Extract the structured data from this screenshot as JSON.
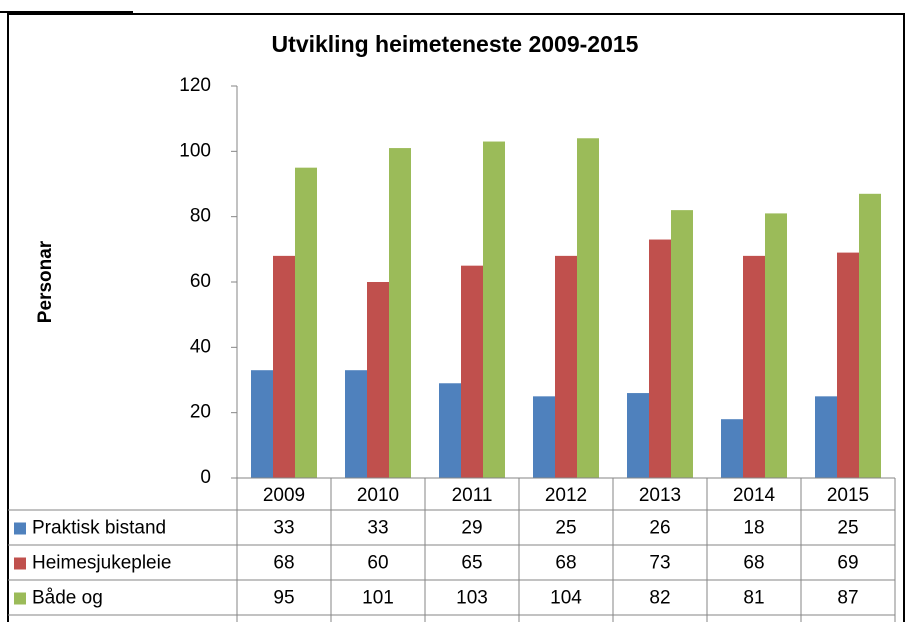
{
  "chart_data": {
    "type": "bar",
    "title": "Utvikling heimeteneste 2009-2015",
    "y_axis_label": "Personar",
    "categories": [
      "2009",
      "2010",
      "2011",
      "2012",
      "2013",
      "2014",
      "2015"
    ],
    "series": [
      {
        "name": "Praktisk bistand",
        "color": "#4f81bd",
        "values": [
          33,
          33,
          29,
          25,
          26,
          18,
          25
        ]
      },
      {
        "name": "Heimesjukepleie",
        "color": "#c0504d",
        "values": [
          68,
          60,
          65,
          68,
          73,
          68,
          69
        ]
      },
      {
        "name": "Både og",
        "color": "#9bbb59",
        "values": [
          95,
          101,
          103,
          104,
          82,
          81,
          87
        ]
      }
    ],
    "ylim": [
      0,
      120
    ],
    "yticks": [
      0,
      20,
      40,
      60,
      80,
      100,
      120
    ],
    "grid": false,
    "data_table": true
  }
}
